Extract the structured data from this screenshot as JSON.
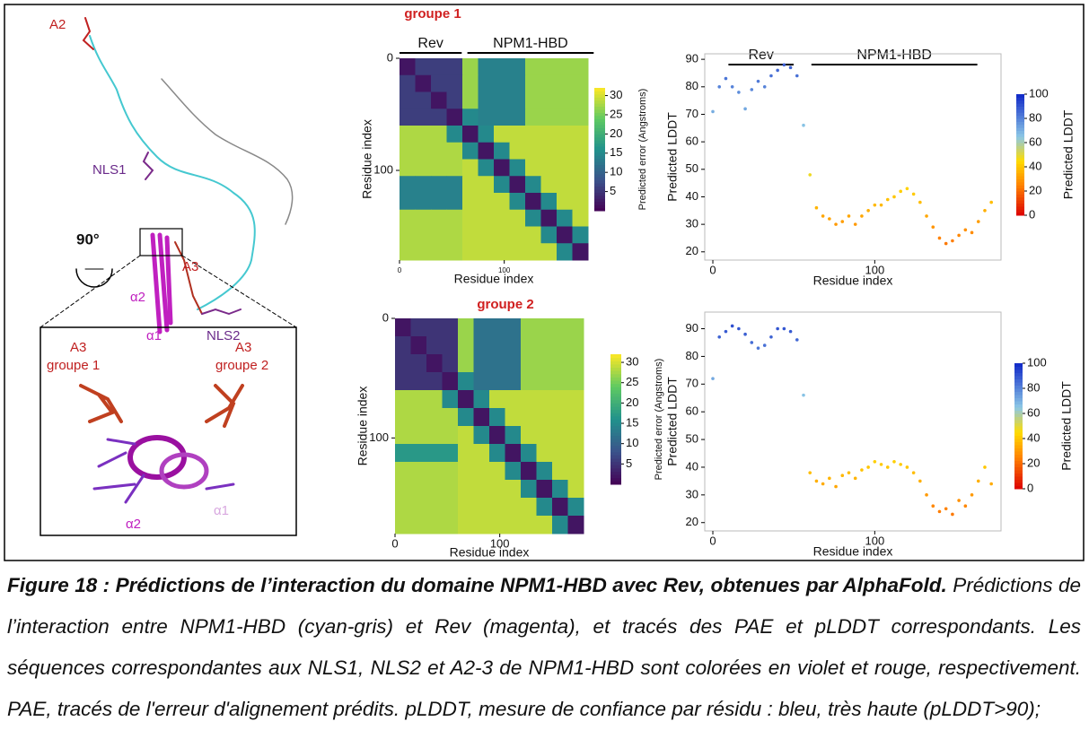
{
  "structure_labels": {
    "a2": "A2",
    "nls1": "NLS1",
    "a3": "A3",
    "nls2": "NLS2",
    "alpha2": "α2",
    "alpha1": "α1",
    "rotation": "90°",
    "inset_a3_g1": "A3",
    "inset_g1": "groupe 1",
    "inset_a3_g2": "A3",
    "inset_g2": "groupe 2",
    "inset_alpha2": "α2",
    "inset_alpha1": "α1"
  },
  "chart_data": [
    {
      "type": "heatmap",
      "title": "groupe 1",
      "segments": [
        "Rev",
        "NPM1-HBD"
      ],
      "x_label": "Residue index",
      "y_label": "Residue index",
      "xlim": [
        0,
        180
      ],
      "ylim": [
        0,
        180
      ],
      "xticks": [
        0,
        100
      ],
      "yticks": [
        0,
        100
      ],
      "colorbar_label": "Predicted error (Angstroms)",
      "clim": [
        0,
        32
      ],
      "cticks": [
        5,
        10,
        15,
        20,
        25,
        30
      ],
      "matrix": [
        [
          2,
          6,
          6,
          6,
          27,
          14,
          14,
          14,
          27,
          27,
          27,
          27
        ],
        [
          6,
          2,
          6,
          6,
          27,
          14,
          14,
          14,
          27,
          27,
          27,
          27
        ],
        [
          6,
          6,
          2,
          6,
          27,
          14,
          14,
          14,
          27,
          27,
          27,
          27
        ],
        [
          6,
          6,
          6,
          2,
          15,
          14,
          14,
          14,
          27,
          27,
          27,
          27
        ],
        [
          28,
          28,
          28,
          15,
          2,
          15,
          29,
          29,
          29,
          29,
          29,
          29
        ],
        [
          28,
          28,
          28,
          28,
          15,
          2,
          15,
          29,
          29,
          29,
          29,
          29
        ],
        [
          28,
          28,
          28,
          28,
          29,
          15,
          2,
          15,
          29,
          29,
          29,
          29
        ],
        [
          14,
          14,
          14,
          14,
          29,
          29,
          15,
          2,
          15,
          29,
          29,
          29
        ],
        [
          14,
          14,
          14,
          14,
          29,
          29,
          29,
          15,
          2,
          15,
          29,
          29
        ],
        [
          28,
          28,
          28,
          28,
          29,
          29,
          29,
          29,
          15,
          2,
          15,
          29
        ],
        [
          28,
          28,
          28,
          28,
          29,
          29,
          29,
          29,
          29,
          15,
          2,
          15
        ],
        [
          28,
          28,
          28,
          28,
          29,
          29,
          29,
          29,
          29,
          29,
          15,
          2
        ]
      ]
    },
    {
      "type": "scatter",
      "segments": [
        "Rev",
        "NPM1-HBD"
      ],
      "x_label": "Residue index",
      "y_label": "Predicted LDDT",
      "xlim": [
        -5,
        178
      ],
      "ylim": [
        17,
        92
      ],
      "xticks": [
        0,
        100
      ],
      "yticks": [
        20,
        30,
        40,
        50,
        60,
        70,
        80,
        90
      ],
      "colorbar_label": "Predicted LDDT",
      "clim": [
        0,
        100
      ],
      "cticks": [
        0,
        20,
        40,
        60,
        80,
        100
      ],
      "x": [
        0,
        4,
        8,
        12,
        16,
        20,
        24,
        28,
        32,
        36,
        40,
        44,
        48,
        52,
        56,
        60,
        64,
        68,
        72,
        76,
        80,
        84,
        88,
        92,
        96,
        100,
        104,
        108,
        112,
        116,
        120,
        124,
        128,
        132,
        136,
        140,
        144,
        148,
        152,
        156,
        160,
        164,
        168,
        172
      ],
      "values": [
        71,
        80,
        83,
        80,
        78,
        72,
        79,
        82,
        80,
        84,
        86,
        88,
        87,
        84,
        66,
        48,
        36,
        33,
        32,
        30,
        31,
        33,
        30,
        33,
        35,
        37,
        37,
        39,
        40,
        42,
        43,
        41,
        38,
        33,
        29,
        25,
        23,
        24,
        26,
        28,
        27,
        31,
        35,
        38
      ]
    },
    {
      "type": "heatmap",
      "title": "groupe 2",
      "x_label": "Residue index",
      "y_label": "Residue index",
      "xlim": [
        0,
        180
      ],
      "ylim": [
        0,
        180
      ],
      "xticks": [
        0,
        100
      ],
      "yticks": [
        0,
        100
      ],
      "colorbar_label": "Predicted error (Angstroms)",
      "clim": [
        0,
        32
      ],
      "cticks": [
        5,
        10,
        15,
        20,
        25,
        30
      ],
      "matrix": [
        [
          2,
          5,
          5,
          5,
          27,
          12,
          12,
          12,
          27,
          27,
          27,
          27
        ],
        [
          5,
          2,
          5,
          5,
          27,
          12,
          12,
          12,
          27,
          27,
          27,
          27
        ],
        [
          5,
          5,
          2,
          5,
          27,
          12,
          12,
          12,
          27,
          27,
          27,
          27
        ],
        [
          5,
          5,
          5,
          2,
          15,
          12,
          12,
          12,
          27,
          27,
          27,
          27
        ],
        [
          28,
          28,
          28,
          15,
          2,
          15,
          29,
          29,
          29,
          29,
          29,
          29
        ],
        [
          28,
          28,
          28,
          28,
          15,
          2,
          15,
          29,
          29,
          29,
          29,
          29
        ],
        [
          28,
          28,
          28,
          28,
          29,
          15,
          2,
          15,
          29,
          29,
          29,
          29
        ],
        [
          17,
          17,
          17,
          17,
          29,
          29,
          15,
          2,
          15,
          29,
          29,
          29
        ],
        [
          28,
          28,
          28,
          28,
          29,
          29,
          29,
          15,
          2,
          15,
          29,
          29
        ],
        [
          28,
          28,
          28,
          28,
          29,
          29,
          29,
          29,
          15,
          2,
          15,
          29
        ],
        [
          28,
          28,
          28,
          28,
          29,
          29,
          29,
          29,
          29,
          15,
          2,
          15
        ],
        [
          28,
          28,
          28,
          28,
          29,
          29,
          29,
          29,
          29,
          29,
          15,
          2
        ]
      ]
    },
    {
      "type": "scatter",
      "x_label": "Residue index",
      "y_label": "Predicted LDDT",
      "xlim": [
        -5,
        178
      ],
      "ylim": [
        17,
        96
      ],
      "xticks": [
        0,
        100
      ],
      "yticks": [
        20,
        30,
        40,
        50,
        60,
        70,
        80,
        90
      ],
      "colorbar_label": "Predicted LDDT",
      "clim": [
        0,
        100
      ],
      "cticks": [
        0,
        20,
        40,
        60,
        80,
        100
      ],
      "x": [
        0,
        4,
        8,
        12,
        16,
        20,
        24,
        28,
        32,
        36,
        40,
        44,
        48,
        52,
        56,
        60,
        64,
        68,
        72,
        76,
        80,
        84,
        88,
        92,
        96,
        100,
        104,
        108,
        112,
        116,
        120,
        124,
        128,
        132,
        136,
        140,
        144,
        148,
        152,
        156,
        160,
        164,
        168,
        172
      ],
      "values": [
        72,
        87,
        89,
        91,
        90,
        88,
        85,
        83,
        84,
        87,
        90,
        90,
        89,
        86,
        66,
        38,
        35,
        34,
        36,
        33,
        37,
        38,
        36,
        39,
        40,
        42,
        41,
        40,
        42,
        41,
        40,
        38,
        35,
        30,
        26,
        24,
        25,
        23,
        28,
        26,
        30,
        35,
        40,
        34
      ]
    }
  ],
  "caption": {
    "title": "Figure 18 : Prédictions de l’interaction du domaine NPM1-HBD avec Rev, obtenues par AlphaFold.",
    "text": "Prédictions de l’interaction entre NPM1-HBD (cyan-gris) et Rev (magenta), et tracés des PAE et pLDDT correspondants. Les séquences correspondantes aux NLS1, NLS2 et A2-3 de NPM1-HBD sont colorées en violet et rouge, respectivement. PAE, tracés de l'erreur d'alignement prédits. pLDDT, mesure de confiance par résidu : bleu, très haute (pLDDT>90);"
  }
}
